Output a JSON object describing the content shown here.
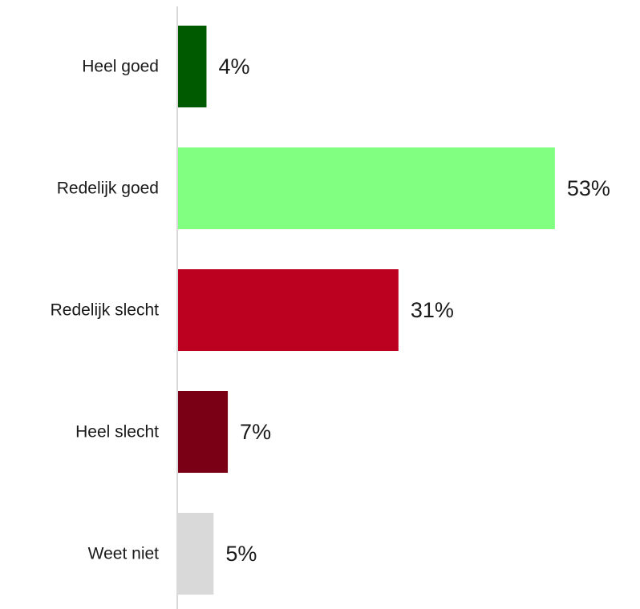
{
  "chart_data": {
    "type": "bar",
    "orientation": "horizontal",
    "categories": [
      "Heel goed",
      "Redelijk goed",
      "Redelijk slecht",
      "Heel slecht",
      "Weet niet"
    ],
    "values": [
      4,
      53,
      31,
      7,
      5
    ],
    "value_labels": [
      "4%",
      "53%",
      "31%",
      "7%",
      "5%"
    ],
    "colors": [
      "#005a00",
      "#80ff80",
      "#bc001f",
      "#7a0015",
      "#d9d9d9"
    ],
    "xlim": [
      0,
      60
    ],
    "unit": "%",
    "grid": false,
    "legend": "none",
    "title": "",
    "xlabel": "",
    "ylabel": ""
  }
}
